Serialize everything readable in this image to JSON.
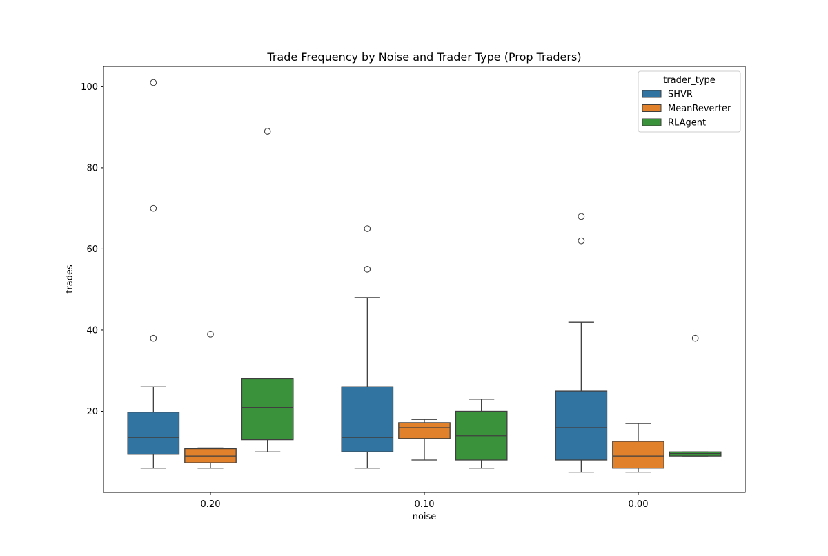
{
  "chart_data": {
    "type": "box",
    "title": "Trade Frequency by Noise and Trader Type (Prop Traders)",
    "xlabel": "noise",
    "ylabel": "trades",
    "categories": [
      "0.20",
      "0.10",
      "0.00"
    ],
    "ylim": [
      0,
      105
    ],
    "yticks": [
      20,
      40,
      60,
      80,
      100
    ],
    "legend": {
      "title": "trader_type",
      "position": "top-right"
    },
    "series": [
      {
        "name": "SHVR",
        "color": "#3274a1",
        "boxes": [
          {
            "whisker_low": 6,
            "q1": 9.4,
            "median": 13.6,
            "q3": 19.8,
            "whisker_high": 26,
            "outliers": [
              38,
              70,
              101
            ]
          },
          {
            "whisker_low": 6,
            "q1": 10,
            "median": 13.6,
            "q3": 26,
            "whisker_high": 48,
            "outliers": [
              55,
              65
            ]
          },
          {
            "whisker_low": 5,
            "q1": 8,
            "median": 16,
            "q3": 25,
            "whisker_high": 42,
            "outliers": [
              62,
              68
            ]
          }
        ]
      },
      {
        "name": "MeanReverter",
        "color": "#e1812c",
        "boxes": [
          {
            "whisker_low": 6,
            "q1": 7.3,
            "median": 9,
            "q3": 10.8,
            "whisker_high": 11,
            "outliers": [
              39
            ]
          },
          {
            "whisker_low": 8,
            "q1": 13.3,
            "median": 16,
            "q3": 17.2,
            "whisker_high": 18,
            "outliers": []
          },
          {
            "whisker_low": 5,
            "q1": 6,
            "median": 9,
            "q3": 12.6,
            "whisker_high": 17,
            "outliers": []
          }
        ]
      },
      {
        "name": "RLAgent",
        "color": "#3a923a",
        "boxes": [
          {
            "whisker_low": 10,
            "q1": 13,
            "median": 21,
            "q3": 28,
            "whisker_high": 28,
            "outliers": [
              89
            ]
          },
          {
            "whisker_low": 6,
            "q1": 8,
            "median": 14,
            "q3": 20,
            "whisker_high": 23,
            "outliers": []
          },
          {
            "whisker_low": 9,
            "q1": 9,
            "median": 9.6,
            "q3": 10,
            "whisker_high": 10,
            "outliers": [
              38
            ]
          }
        ]
      }
    ]
  }
}
